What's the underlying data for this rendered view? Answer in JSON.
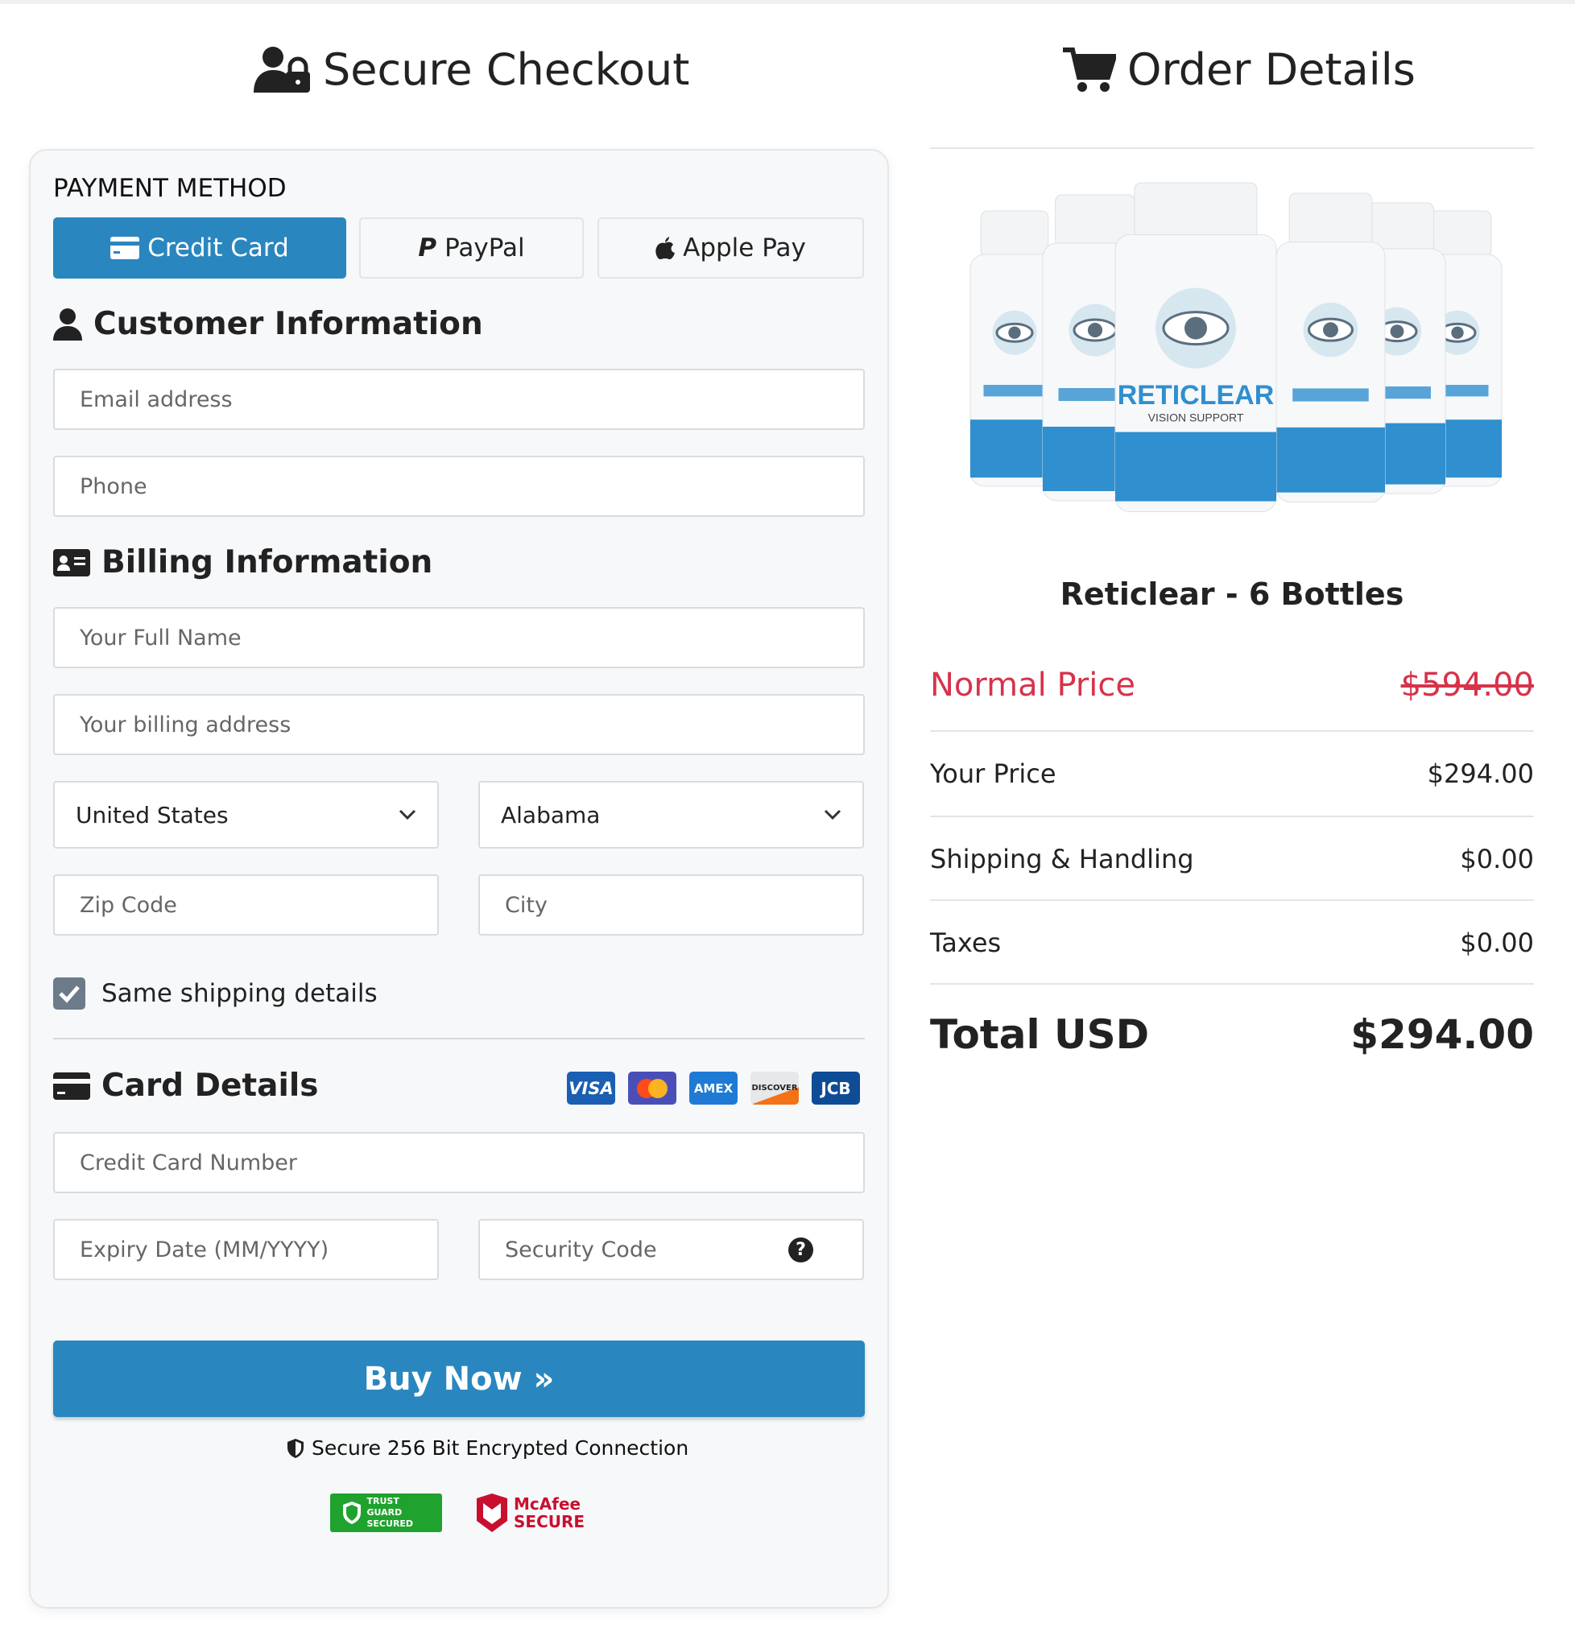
{
  "header": {
    "checkout_title": "Secure Checkout",
    "order_title": "Order Details"
  },
  "payment": {
    "label": "PAYMENT METHOD",
    "methods": [
      {
        "label": "Credit Card",
        "icon": "credit-card-icon",
        "active": true
      },
      {
        "label": "PayPal",
        "icon": "paypal-icon"
      },
      {
        "label": "Apple Pay",
        "icon": "apple-icon"
      }
    ]
  },
  "customer": {
    "title": "Customer Information",
    "email_placeholder": "Email address",
    "phone_placeholder": "Phone"
  },
  "billing": {
    "title": "Billing Information",
    "name_placeholder": "Your Full Name",
    "address_placeholder": "Your billing address",
    "country": "United States",
    "state": "Alabama",
    "zip_placeholder": "Zip Code",
    "city_placeholder": "City",
    "same_shipping_label": "Same shipping details",
    "same_shipping_checked": true
  },
  "card": {
    "title": "Card Details",
    "brands": [
      "VISA",
      "MasterCard",
      "AMEX",
      "DISCOVER",
      "JCB"
    ],
    "number_placeholder": "Credit Card Number",
    "expiry_placeholder": "Expiry Date (MM/YYYY)",
    "cvv_placeholder": "Security Code"
  },
  "buy": {
    "label": "Buy Now »",
    "secure_text": "Secure 256 Bit Encrypted Connection",
    "badges": [
      "TRUST GUARD SECURED",
      "McAfee SECURE"
    ]
  },
  "order": {
    "product_name": "Reticlear - 6 Bottles",
    "bottle_label": "RETICLEAR",
    "bottle_sub": "VISION SUPPORT",
    "normal_label": "Normal Price",
    "normal_price": "$594.00",
    "rows": [
      {
        "label": "Your Price",
        "value": "$294.00"
      },
      {
        "label": "Shipping & Handling",
        "value": "$0.00"
      },
      {
        "label": "Taxes",
        "value": "$0.00"
      }
    ],
    "total_label": "Total USD",
    "total_value": "$294.00"
  },
  "colors": {
    "primary": "#2a86bf",
    "danger": "#d6334a"
  }
}
